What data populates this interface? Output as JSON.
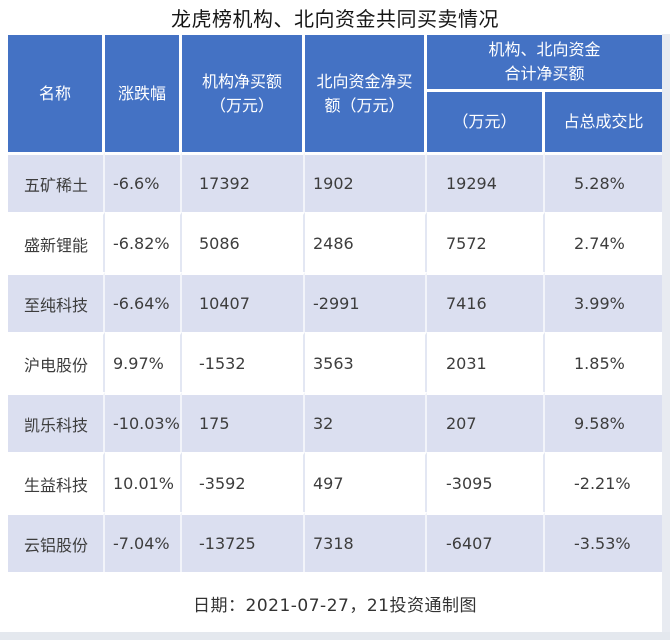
{
  "title": "龙虎榜机构、北向资金共同买卖情况",
  "header": {
    "col_name": "名称",
    "col_change": "涨跌幅",
    "col_inst": "机构净买额\n（万元）",
    "col_north": "北向资金净买\n额（万元）",
    "col_combined_group": "机构、北向资金\n合计净买额",
    "col_combined_amount": "（万元）",
    "col_combined_ratio": "占总成交比"
  },
  "rows": [
    {
      "name": "五矿稀土",
      "change": "-6.6%",
      "inst": "17392",
      "north": "1902",
      "combined": "19294",
      "ratio": "5.28%"
    },
    {
      "name": "盛新锂能",
      "change": "-6.82%",
      "inst": "5086",
      "north": "2486",
      "combined": "7572",
      "ratio": "2.74%"
    },
    {
      "name": "至纯科技",
      "change": "-6.64%",
      "inst": "10407",
      "north": "-2991",
      "combined": "7416",
      "ratio": "3.99%"
    },
    {
      "name": "沪电股份",
      "change": "9.97%",
      "inst": "-1532",
      "north": "3563",
      "combined": "2031",
      "ratio": "1.85%"
    },
    {
      "name": "凯乐科技",
      "change": "-10.03%",
      "inst": "175",
      "north": "32",
      "combined": "207",
      "ratio": "9.58%"
    },
    {
      "name": "生益科技",
      "change": "10.01%",
      "inst": "-3592",
      "north": "497",
      "combined": "-3095",
      "ratio": "-2.21%"
    },
    {
      "name": "云铝股份",
      "change": "-7.04%",
      "inst": "-13725",
      "north": "7318",
      "combined": "-6407",
      "ratio": "-3.53%"
    }
  ],
  "footer": {
    "note": "日期：2021-07-27，21投资通制图"
  },
  "colors": {
    "header_bg": "#4472C4",
    "header_text": "#FFFFFF",
    "row_alt_bg": "#DBDFF0",
    "row_bg": "#FFFFFF",
    "body_text": "#3D3D3D"
  },
  "chart_data": {
    "type": "table",
    "title": "龙虎榜机构、北向资金共同买卖情况",
    "columns": [
      "名称",
      "涨跌幅",
      "机构净买额（万元）",
      "北向资金净买额（万元）",
      "机构、北向资金合计净买额（万元）",
      "机构、北向资金合计净买额占总成交比"
    ],
    "rows": [
      [
        "五矿稀土",
        "-6.6%",
        17392,
        1902,
        19294,
        "5.28%"
      ],
      [
        "盛新锂能",
        "-6.82%",
        5086,
        2486,
        7572,
        "2.74%"
      ],
      [
        "至纯科技",
        "-6.64%",
        10407,
        -2991,
        7416,
        "3.99%"
      ],
      [
        "沪电股份",
        "9.97%",
        -1532,
        3563,
        2031,
        "1.85%"
      ],
      [
        "凯乐科技",
        "-10.03%",
        175,
        32,
        207,
        "9.58%"
      ],
      [
        "生益科技",
        "10.01%",
        -3592,
        497,
        -3095,
        "-2.21%"
      ],
      [
        "云铝股份",
        "-7.04%",
        -13725,
        7318,
        -6407,
        "-3.53%"
      ]
    ],
    "note": "日期：2021-07-27，21投资通制图"
  }
}
